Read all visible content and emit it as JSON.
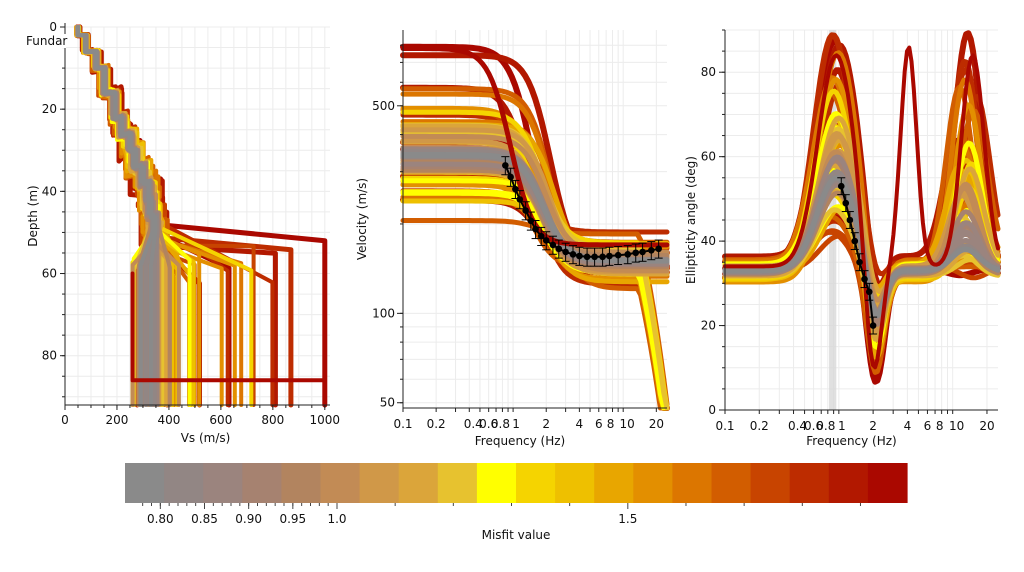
{
  "chart_data": [
    {
      "type": "line",
      "title": "",
      "xlabel": "Vs (m/s)",
      "ylabel": "Depth (m)",
      "xlim": [
        0,
        1020
      ],
      "ylim": [
        0,
        92
      ],
      "y_inverted": true,
      "x_ticks": [
        "0",
        "200",
        "400",
        "600",
        "800",
        "1000"
      ],
      "y_ticks": [
        "0",
        "20",
        "40",
        "60",
        "80"
      ],
      "annotation": "Fundar",
      "best_profile": {
        "depth": [
          0,
          2,
          6,
          10,
          16,
          22,
          26,
          30,
          34,
          38,
          42,
          46,
          50,
          92
        ],
        "vs": [
          50,
          80,
          120,
          150,
          190,
          220,
          250,
          270,
          300,
          320,
          330,
          345,
          285,
          285
        ]
      }
    },
    {
      "type": "line",
      "title": "",
      "xlabel": "Frequency (Hz)",
      "ylabel": "Velocity (m/s)",
      "xscale": "log",
      "yscale": "log",
      "xlim": [
        0.1,
        25
      ],
      "ylim": [
        48,
        900
      ],
      "x_ticks": [
        "0.1",
        "0.2",
        "0.4",
        "0.6",
        "0.8",
        "1",
        "2",
        "4",
        "6",
        "8",
        "10",
        "20"
      ],
      "y_ticks": [
        "50",
        "100",
        "500"
      ],
      "target_curve": {
        "frequency": [
          0.85,
          0.95,
          1.05,
          1.15,
          1.3,
          1.45,
          1.6,
          1.8,
          2.0,
          2.3,
          2.6,
          3.0,
          3.5,
          4.0,
          4.7,
          5.5,
          6.5,
          7.5,
          9.0,
          11,
          13,
          15,
          18,
          21
        ],
        "velocity": [
          315,
          288,
          262,
          242,
          222,
          205,
          192,
          182,
          176,
          170,
          165,
          161,
          158,
          156,
          155,
          155,
          155,
          156,
          157,
          158,
          160,
          161,
          163,
          165
        ]
      }
    },
    {
      "type": "line",
      "title": "",
      "xlabel": "Frequency (Hz)",
      "ylabel": "Ellipticity angle (deg)",
      "xscale": "log",
      "xlim": [
        0.1,
        25
      ],
      "ylim": [
        0,
        90
      ],
      "x_ticks": [
        "0.1",
        "0.2",
        "0.4",
        "0.6",
        "0.8",
        "1",
        "2",
        "4",
        "6",
        "8",
        "10",
        "20"
      ],
      "y_ticks": [
        "0",
        "20",
        "40",
        "60",
        "80"
      ],
      "peak_band": [
        0.82,
        0.95
      ],
      "target_curve": {
        "frequency": [
          1.05,
          1.15,
          1.25,
          1.38,
          1.52,
          1.68,
          1.85,
          2.0
        ],
        "angle": [
          53,
          49,
          45,
          40,
          35,
          31,
          28,
          20
        ]
      }
    }
  ],
  "colorbar": {
    "label": "Misfit value",
    "min": 0.76,
    "max": 1.98,
    "ticks": [
      "0.80",
      "0.85",
      "0.90",
      "0.95",
      "1.0",
      "1.5"
    ],
    "tick_values": [
      0.8,
      0.85,
      0.9,
      0.95,
      1.0,
      1.5
    ],
    "colors": [
      "#8a8a8a",
      "#928684",
      "#9b847e",
      "#a68270",
      "#b2845f",
      "#c28b55",
      "#d09848",
      "#dba53a",
      "#e7c22f",
      "#ffff00",
      "#f5d400",
      "#eec000",
      "#e8a600",
      "#e38f00",
      "#dc7600",
      "#d25d00",
      "#c84400",
      "#bd2c00",
      "#b21800",
      "#aa0800"
    ]
  }
}
